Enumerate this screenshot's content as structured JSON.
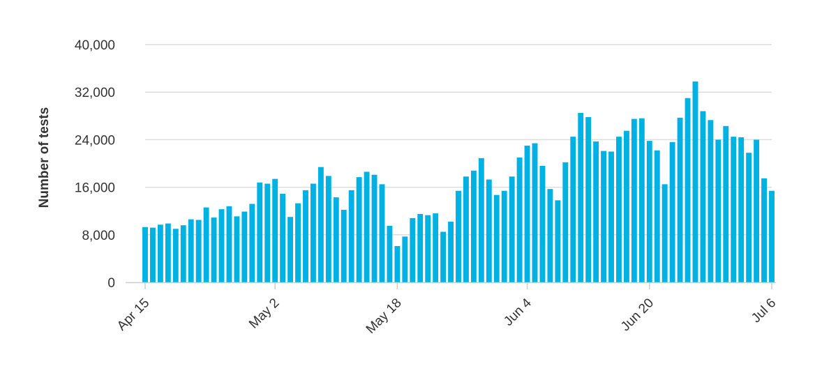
{
  "chart_data": {
    "type": "bar",
    "title": "",
    "xlabel": "",
    "ylabel": "Number of tests",
    "ylim": [
      0,
      40000
    ],
    "y_ticks": [
      0,
      8000,
      16000,
      24000,
      32000,
      40000
    ],
    "y_tick_labels": [
      "0",
      "8,000",
      "16,000",
      "24,000",
      "32,000",
      "40,000"
    ],
    "x_tick_labels": [
      {
        "date": "2020-04-15",
        "label": "Apr 15"
      },
      {
        "date": "2020-05-02",
        "label": "May 2"
      },
      {
        "date": "2020-05-18",
        "label": "May 18"
      },
      {
        "date": "2020-06-04",
        "label": "Jun 4"
      },
      {
        "date": "2020-06-20",
        "label": "Jun 20"
      },
      {
        "date": "2020-07-06",
        "label": "Jul 6"
      }
    ],
    "grid": true,
    "legend": "none",
    "bar_color": "#00b2e3",
    "grid_color": "#dddddd",
    "start_date": "2020-04-15",
    "values": [
      9300,
      9200,
      9700,
      9900,
      9000,
      9600,
      10600,
      10500,
      12600,
      10900,
      12300,
      12800,
      11100,
      11900,
      13200,
      16800,
      16600,
      17400,
      14900,
      11000,
      13300,
      15500,
      16600,
      19400,
      17900,
      14300,
      12200,
      15500,
      17700,
      18600,
      18100,
      16500,
      9500,
      6100,
      7700,
      10800,
      11500,
      11300,
      11600,
      8500,
      10200,
      15400,
      17800,
      18800,
      20900,
      17300,
      14700,
      15400,
      17800,
      21000,
      23000,
      23400,
      19600,
      15700,
      13800,
      20200,
      24500,
      28500,
      27800,
      23700,
      22100,
      22000,
      24500,
      25500,
      27500,
      27600,
      23800,
      22200,
      16500,
      23600,
      27700,
      31000,
      33800,
      28800,
      27300,
      24000,
      26300,
      24500,
      24400,
      21800,
      24000,
      17500,
      15400
    ]
  }
}
